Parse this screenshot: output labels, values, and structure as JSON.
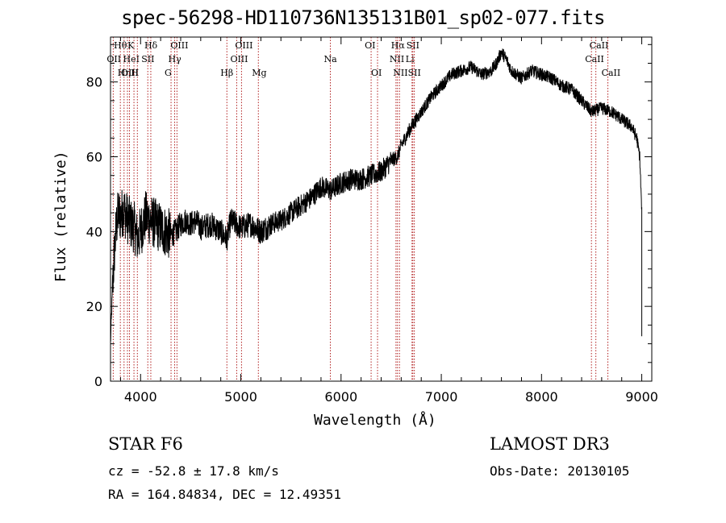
{
  "chart_data": {
    "type": "line",
    "title": "spec-56298-HD110736N135131B01_sp02-077.fits",
    "xlabel": "Wavelength (Å)",
    "ylabel": "Flux (relative)",
    "xlim": [
      3700,
      9100
    ],
    "ylim": [
      0,
      92
    ],
    "xticks": [
      4000,
      5000,
      6000,
      7000,
      8000,
      9000
    ],
    "yticks": [
      0,
      20,
      40,
      60,
      80
    ],
    "series": [
      {
        "name": "flux",
        "color": "#000000",
        "x": [
          3700,
          3720,
          3740,
          3760,
          3780,
          3800,
          3830,
          3860,
          3900,
          3940,
          3970,
          4000,
          4050,
          4100,
          4150,
          4200,
          4250,
          4300,
          4350,
          4400,
          4450,
          4500,
          4550,
          4600,
          4700,
          4800,
          4861,
          4900,
          5000,
          5100,
          5200,
          5300,
          5400,
          5500,
          5600,
          5700,
          5800,
          5900,
          6000,
          6100,
          6200,
          6300,
          6400,
          6500,
          6563,
          6600,
          6700,
          6800,
          6900,
          7000,
          7100,
          7200,
          7300,
          7400,
          7500,
          7550,
          7600,
          7650,
          7700,
          7800,
          7900,
          8000,
          8100,
          8200,
          8300,
          8400,
          8500,
          8600,
          8700,
          8800,
          8850,
          8900,
          8950,
          8980,
          9000
        ],
        "y": [
          10,
          25,
          35,
          42,
          45,
          44,
          46,
          44,
          42,
          41,
          38,
          40,
          44,
          43,
          42,
          41,
          40,
          39,
          40,
          42,
          43,
          42,
          43,
          41,
          42,
          40,
          38,
          43,
          41,
          42,
          40,
          42,
          43,
          45,
          47,
          49,
          52,
          51,
          53,
          54,
          54,
          55,
          56,
          59,
          60,
          63,
          68,
          72,
          76,
          79,
          82,
          83,
          84,
          82,
          83,
          85,
          88,
          86,
          83,
          81,
          83,
          82,
          81,
          79,
          78,
          75,
          72,
          73,
          72,
          70,
          69,
          68,
          65,
          60,
          45
        ]
      }
    ],
    "lines": [
      {
        "name": "OII",
        "wavelength": 3727,
        "row": 2
      },
      {
        "name": "Hθ",
        "wavelength": 3798,
        "row": 1
      },
      {
        "name": "Hη",
        "wavelength": 3835,
        "row": 3
      },
      {
        "name": "OIII",
        "wavelength": 3869,
        "row": 3
      },
      {
        "name": "HeI",
        "wavelength": 3889,
        "row": 2
      },
      {
        "name": "K",
        "wavelength": 3934,
        "row": 1
      },
      {
        "name": "H",
        "wavelength": 3968,
        "row": 3
      },
      {
        "name": "SII",
        "wavelength": 4072,
        "row": 2
      },
      {
        "name": "Hδ",
        "wavelength": 4102,
        "row": 1
      },
      {
        "name": "G",
        "wavelength": 4304,
        "row": 3
      },
      {
        "name": "Hγ",
        "wavelength": 4340,
        "row": 2
      },
      {
        "name": "OIII",
        "wavelength": 4363,
        "row": 1
      },
      {
        "name": "Hβ",
        "wavelength": 4861,
        "row": 3
      },
      {
        "name": "OIII",
        "wavelength": 4959,
        "row": 2
      },
      {
        "name": "OIII",
        "wavelength": 5007,
        "row": 1
      },
      {
        "name": "Mg",
        "wavelength": 5175,
        "row": 3
      },
      {
        "name": "Na",
        "wavelength": 5893,
        "row": 2
      },
      {
        "name": "OI",
        "wavelength": 6300,
        "row": 1
      },
      {
        "name": "OI",
        "wavelength": 6364,
        "row": 3
      },
      {
        "name": "NII",
        "wavelength": 6548,
        "row": 2
      },
      {
        "name": "Hα",
        "wavelength": 6563,
        "row": 1
      },
      {
        "name": "NII",
        "wavelength": 6583,
        "row": 3
      },
      {
        "name": "Li",
        "wavelength": 6708,
        "row": 2
      },
      {
        "name": "SII",
        "wavelength": 6716,
        "row": 1
      },
      {
        "name": "SII",
        "wavelength": 6731,
        "row": 3
      },
      {
        "name": "CaII",
        "wavelength": 8498,
        "row": 2
      },
      {
        "name": "CaII",
        "wavelength": 8542,
        "row": 1
      },
      {
        "name": "CaII",
        "wavelength": 8662,
        "row": 3
      }
    ]
  },
  "info": {
    "star_label": "STAR    F6",
    "survey": "LAMOST DR3",
    "cz": "cz = -52.8 ± 17.8 km/s",
    "obs_date": "Obs-Date: 20130105",
    "radec": "RA = 164.84834, DEC =  12.49351"
  },
  "colors": {
    "line_markers": "#b22222",
    "axes": "#000000",
    "spectrum": "#000000"
  }
}
